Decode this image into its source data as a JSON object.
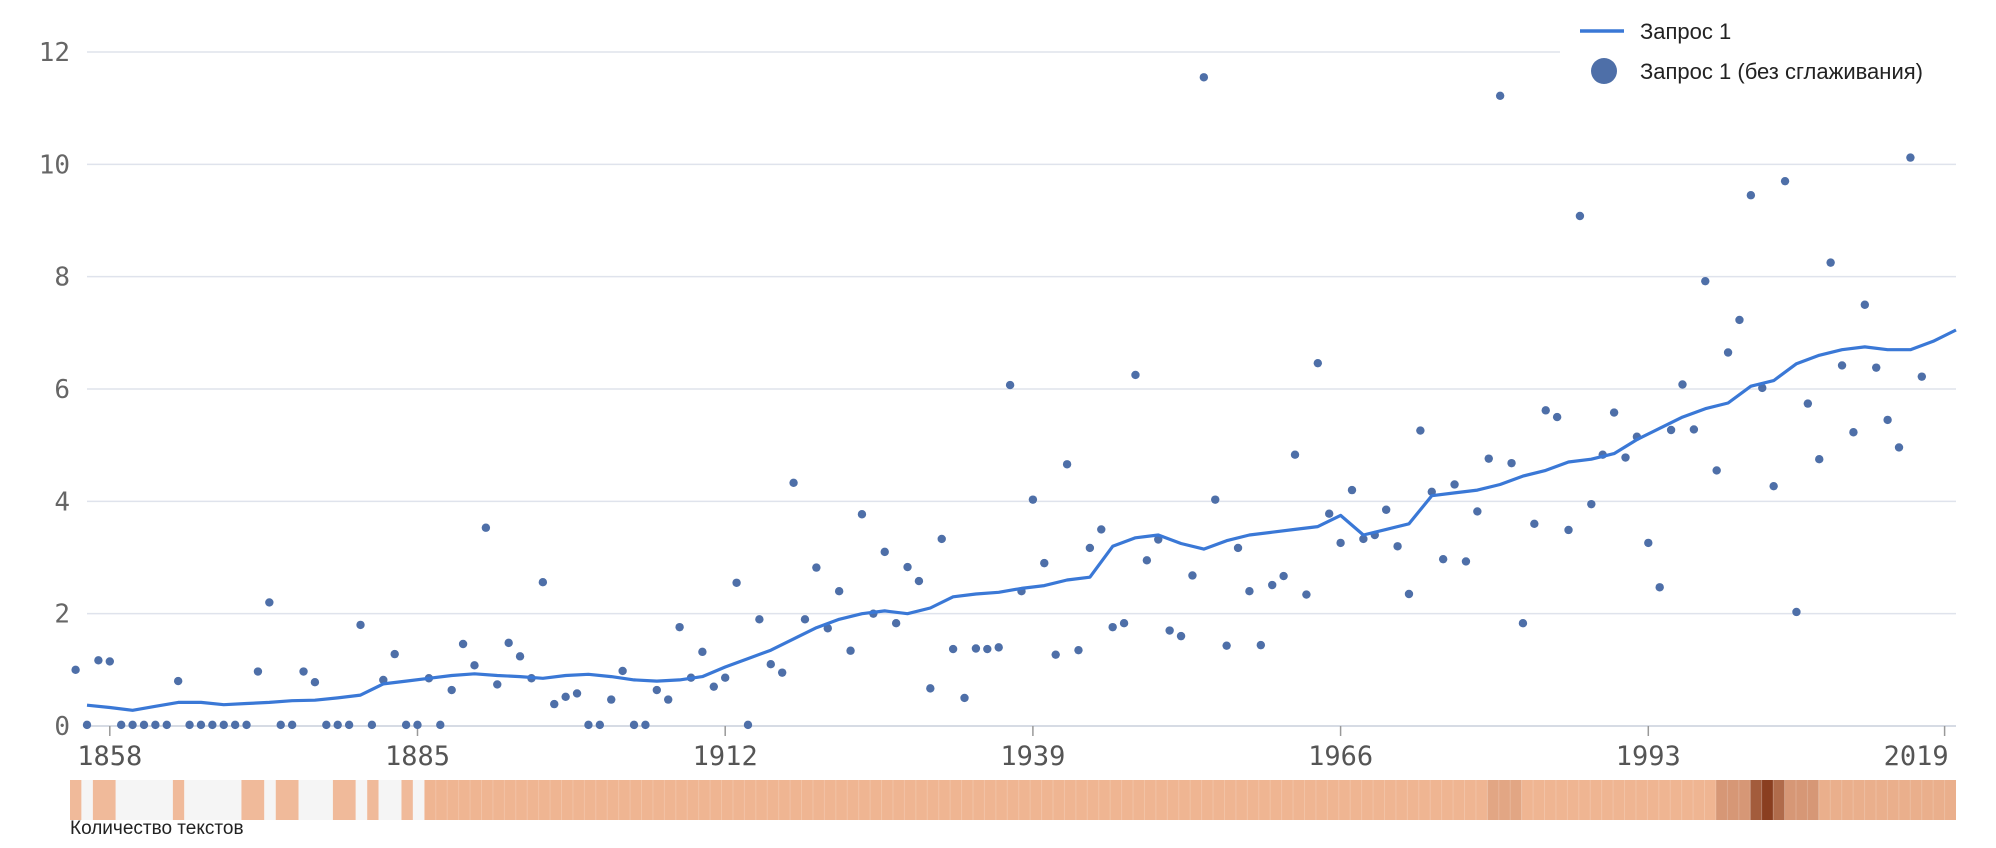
{
  "chart_data": {
    "type": "line",
    "title": "",
    "xlabel": "",
    "ylabel": "",
    "xlim": [
      1856,
      2020
    ],
    "ylim": [
      0,
      12
    ],
    "grid": true,
    "legend_position": "top-right",
    "y_ticks": [
      "0",
      "2",
      "4",
      "6",
      "8",
      "10",
      "12"
    ],
    "x_ticks": [
      {
        "value": 1858,
        "label": "1858"
      },
      {
        "value": 1885,
        "label": "1885"
      },
      {
        "value": 1912,
        "label": "1912"
      },
      {
        "value": 1939,
        "label": "1939"
      },
      {
        "value": 1966,
        "label": "1966"
      },
      {
        "value": 1993,
        "label": "1993"
      },
      {
        "value": 2019,
        "label": "2019"
      }
    ],
    "series": [
      {
        "name": "Запрос 1",
        "type": "line",
        "color": "#3a78d6",
        "x": [
          1856,
          1858,
          1860,
          1862,
          1864,
          1866,
          1868,
          1870,
          1872,
          1874,
          1876,
          1878,
          1880,
          1882,
          1884,
          1886,
          1888,
          1890,
          1892,
          1894,
          1896,
          1898,
          1900,
          1902,
          1904,
          1906,
          1908,
          1910,
          1912,
          1914,
          1916,
          1918,
          1920,
          1922,
          1924,
          1926,
          1928,
          1930,
          1932,
          1934,
          1936,
          1938,
          1940,
          1942,
          1944,
          1946,
          1948,
          1950,
          1952,
          1954,
          1956,
          1958,
          1960,
          1962,
          1964,
          1966,
          1968,
          1970,
          1972,
          1974,
          1976,
          1978,
          1980,
          1982,
          1984,
          1986,
          1988,
          1990,
          1992,
          1994,
          1996,
          1998,
          2000,
          2002,
          2004,
          2006,
          2008,
          2010,
          2012,
          2014,
          2016,
          2018,
          2020
        ],
        "values": [
          0.37,
          0.33,
          0.28,
          0.35,
          0.42,
          0.42,
          0.38,
          0.4,
          0.42,
          0.45,
          0.46,
          0.5,
          0.55,
          0.75,
          0.8,
          0.85,
          0.9,
          0.93,
          0.9,
          0.88,
          0.85,
          0.9,
          0.92,
          0.88,
          0.82,
          0.8,
          0.82,
          0.88,
          1.05,
          1.2,
          1.35,
          1.55,
          1.75,
          1.9,
          2.0,
          2.05,
          2.0,
          2.1,
          2.3,
          2.35,
          2.38,
          2.45,
          2.5,
          2.6,
          2.65,
          3.2,
          3.35,
          3.4,
          3.25,
          3.15,
          3.3,
          3.4,
          3.45,
          3.5,
          3.55,
          3.75,
          3.4,
          3.5,
          3.6,
          4.1,
          4.15,
          4.2,
          4.3,
          4.45,
          4.55,
          4.7,
          4.75,
          4.85,
          5.1,
          5.3,
          5.5,
          5.65,
          5.75,
          6.05,
          6.15,
          6.45,
          6.6,
          6.7,
          6.75,
          6.7,
          6.7,
          6.85,
          7.05
        ]
      },
      {
        "name": "Запрос 1 (без сглаживания)",
        "type": "scatter",
        "color": "#4e6fa8",
        "points": [
          [
            1855,
            1.0
          ],
          [
            1856,
            0.02
          ],
          [
            1857,
            1.17
          ],
          [
            1858,
            1.15
          ],
          [
            1859,
            0.02
          ],
          [
            1860,
            0.02
          ],
          [
            1861,
            0.02
          ],
          [
            1862,
            0.02
          ],
          [
            1863,
            0.02
          ],
          [
            1864,
            0.8
          ],
          [
            1865,
            0.02
          ],
          [
            1866,
            0.02
          ],
          [
            1867,
            0.02
          ],
          [
            1868,
            0.02
          ],
          [
            1869,
            0.02
          ],
          [
            1870,
            0.02
          ],
          [
            1871,
            0.97
          ],
          [
            1872,
            2.2
          ],
          [
            1873,
            0.02
          ],
          [
            1874,
            0.02
          ],
          [
            1875,
            0.97
          ],
          [
            1876,
            0.78
          ],
          [
            1877,
            0.02
          ],
          [
            1878,
            0.02
          ],
          [
            1879,
            0.02
          ],
          [
            1880,
            1.8
          ],
          [
            1881,
            0.02
          ],
          [
            1882,
            0.82
          ],
          [
            1883,
            1.28
          ],
          [
            1884,
            0.02
          ],
          [
            1885,
            0.02
          ],
          [
            1886,
            0.85
          ],
          [
            1887,
            0.02
          ],
          [
            1888,
            0.64
          ],
          [
            1889,
            1.46
          ],
          [
            1890,
            1.08
          ],
          [
            1891,
            3.53
          ],
          [
            1892,
            0.74
          ],
          [
            1893,
            1.48
          ],
          [
            1894,
            1.24
          ],
          [
            1895,
            0.85
          ],
          [
            1896,
            2.56
          ],
          [
            1897,
            0.39
          ],
          [
            1898,
            0.52
          ],
          [
            1899,
            0.58
          ],
          [
            1900,
            0.02
          ],
          [
            1901,
            0.02
          ],
          [
            1902,
            0.47
          ],
          [
            1903,
            0.98
          ],
          [
            1904,
            0.02
          ],
          [
            1905,
            0.02
          ],
          [
            1906,
            0.64
          ],
          [
            1907,
            0.47
          ],
          [
            1908,
            1.76
          ],
          [
            1909,
            0.86
          ],
          [
            1910,
            1.32
          ],
          [
            1911,
            0.7
          ],
          [
            1912,
            0.86
          ],
          [
            1913,
            2.55
          ],
          [
            1914,
            0.02
          ],
          [
            1915,
            1.9
          ],
          [
            1916,
            1.1
          ],
          [
            1917,
            0.95
          ],
          [
            1918,
            4.33
          ],
          [
            1919,
            1.9
          ],
          [
            1920,
            2.82
          ],
          [
            1921,
            1.74
          ],
          [
            1922,
            2.4
          ],
          [
            1923,
            1.34
          ],
          [
            1924,
            3.77
          ],
          [
            1925,
            2.0
          ],
          [
            1926,
            3.1
          ],
          [
            1927,
            1.83
          ],
          [
            1928,
            2.83
          ],
          [
            1929,
            2.58
          ],
          [
            1930,
            0.67
          ],
          [
            1931,
            3.33
          ],
          [
            1932,
            1.37
          ],
          [
            1933,
            0.5
          ],
          [
            1934,
            1.38
          ],
          [
            1935,
            1.37
          ],
          [
            1936,
            1.4
          ],
          [
            1937,
            6.07
          ],
          [
            1938,
            2.4
          ],
          [
            1939,
            4.03
          ],
          [
            1940,
            2.9
          ],
          [
            1941,
            1.27
          ],
          [
            1942,
            4.66
          ],
          [
            1943,
            1.35
          ],
          [
            1944,
            3.17
          ],
          [
            1945,
            3.5
          ],
          [
            1946,
            1.76
          ],
          [
            1947,
            1.83
          ],
          [
            1948,
            6.25
          ],
          [
            1949,
            2.95
          ],
          [
            1950,
            3.32
          ],
          [
            1951,
            1.7
          ],
          [
            1952,
            1.6
          ],
          [
            1953,
            2.68
          ],
          [
            1954,
            11.55
          ],
          [
            1955,
            4.03
          ],
          [
            1956,
            1.43
          ],
          [
            1957,
            3.17
          ],
          [
            1958,
            2.4
          ],
          [
            1959,
            1.44
          ],
          [
            1960,
            2.51
          ],
          [
            1961,
            2.67
          ],
          [
            1962,
            4.83
          ],
          [
            1963,
            2.34
          ],
          [
            1964,
            6.46
          ],
          [
            1965,
            3.78
          ],
          [
            1966,
            3.26
          ],
          [
            1967,
            4.2
          ],
          [
            1968,
            3.33
          ],
          [
            1969,
            3.4
          ],
          [
            1970,
            3.85
          ],
          [
            1971,
            3.2
          ],
          [
            1972,
            2.35
          ],
          [
            1973,
            5.26
          ],
          [
            1974,
            4.17
          ],
          [
            1975,
            2.97
          ],
          [
            1976,
            4.3
          ],
          [
            1977,
            2.93
          ],
          [
            1978,
            3.82
          ],
          [
            1979,
            4.76
          ],
          [
            1980,
            11.22
          ],
          [
            1981,
            4.68
          ],
          [
            1982,
            1.83
          ],
          [
            1983,
            3.6
          ],
          [
            1984,
            5.62
          ],
          [
            1985,
            5.5
          ],
          [
            1986,
            3.49
          ],
          [
            1987,
            9.08
          ],
          [
            1988,
            3.95
          ],
          [
            1989,
            4.83
          ],
          [
            1990,
            5.58
          ],
          [
            1991,
            4.78
          ],
          [
            1992,
            5.15
          ],
          [
            1993,
            3.26
          ],
          [
            1994,
            2.47
          ],
          [
            1995,
            5.27
          ],
          [
            1996,
            6.08
          ],
          [
            1997,
            5.28
          ],
          [
            1998,
            7.92
          ],
          [
            1999,
            4.55
          ],
          [
            2000,
            6.65
          ],
          [
            2001,
            7.23
          ],
          [
            2002,
            9.45
          ],
          [
            2003,
            6.02
          ],
          [
            2004,
            4.27
          ],
          [
            2005,
            9.7
          ],
          [
            2006,
            2.03
          ],
          [
            2007,
            5.74
          ],
          [
            2008,
            4.75
          ],
          [
            2009,
            8.25
          ],
          [
            2010,
            6.42
          ],
          [
            2011,
            5.23
          ],
          [
            2012,
            7.5
          ],
          [
            2013,
            6.38
          ],
          [
            2014,
            5.45
          ],
          [
            2015,
            4.96
          ],
          [
            2016,
            10.12
          ],
          [
            2017,
            6.22
          ]
        ]
      }
    ],
    "heatmap_strip": {
      "label": "Количество текстов",
      "low_color": "#f5f5f5",
      "mid_color": "#efb592",
      "high_color": "#8a3e20",
      "segments": [
        {
          "from": 1855,
          "to": 1856,
          "level": 0.55
        },
        {
          "from": 1856,
          "to": 1857,
          "level": 0.0
        },
        {
          "from": 1857,
          "to": 1859,
          "level": 0.55
        },
        {
          "from": 1859,
          "to": 1864,
          "level": 0.0
        },
        {
          "from": 1864,
          "to": 1865,
          "level": 0.55
        },
        {
          "from": 1865,
          "to": 1870,
          "level": 0.0
        },
        {
          "from": 1870,
          "to": 1872,
          "level": 0.55
        },
        {
          "from": 1872,
          "to": 1873,
          "level": 0.0
        },
        {
          "from": 1873,
          "to": 1875,
          "level": 0.55
        },
        {
          "from": 1875,
          "to": 1878,
          "level": 0.0
        },
        {
          "from": 1878,
          "to": 1880,
          "level": 0.55
        },
        {
          "from": 1880,
          "to": 1881,
          "level": 0.0
        },
        {
          "from": 1881,
          "to": 1882,
          "level": 0.55
        },
        {
          "from": 1882,
          "to": 1884,
          "level": 0.0
        },
        {
          "from": 1884,
          "to": 1885,
          "level": 0.55
        },
        {
          "from": 1885,
          "to": 1886,
          "level": 0.0
        },
        {
          "from": 1886,
          "to": 1979,
          "level": 0.6
        },
        {
          "from": 1979,
          "to": 1982,
          "level": 0.65
        },
        {
          "from": 1982,
          "to": 1999,
          "level": 0.6
        },
        {
          "from": 1999,
          "to": 2002,
          "level": 0.7
        },
        {
          "from": 2002,
          "to": 2003,
          "level": 0.9
        },
        {
          "from": 2003,
          "to": 2004,
          "level": 1.0
        },
        {
          "from": 2004,
          "to": 2005,
          "level": 0.85
        },
        {
          "from": 2005,
          "to": 2008,
          "level": 0.7
        },
        {
          "from": 2008,
          "to": 2020,
          "level": 0.62
        }
      ]
    }
  }
}
